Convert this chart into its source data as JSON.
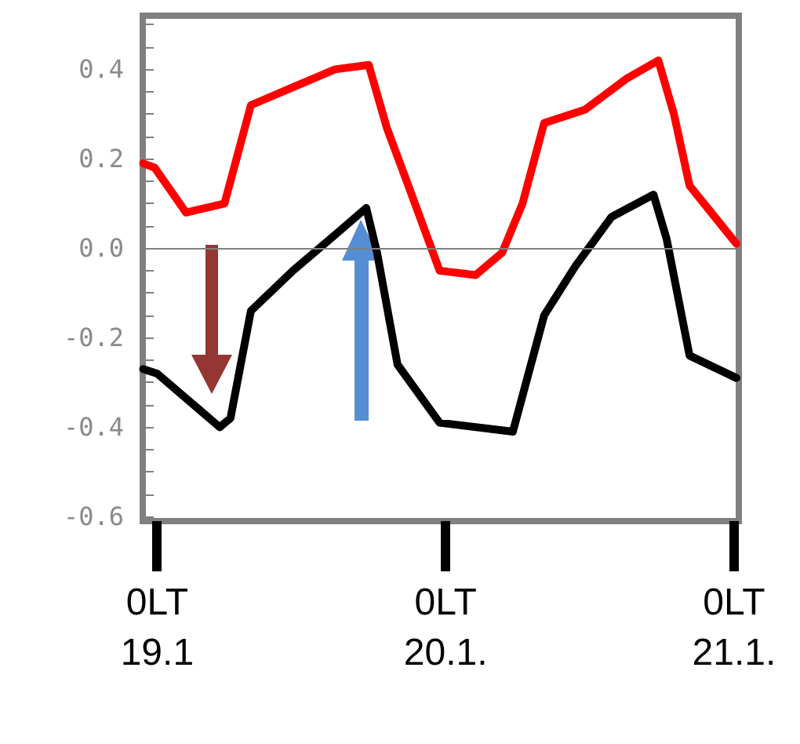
{
  "chart_data": {
    "type": "line",
    "xlim": [
      "--01-18T22:48",
      "--01-21T00:24"
    ],
    "xticks": [
      {
        "value": "--01-19T00:00",
        "label": "0LT\n19.1"
      },
      {
        "value": "--01-20T00:00",
        "label": "0LT\n20.1."
      },
      {
        "value": "--01-21T00:00",
        "label": "0LT\n21.1."
      }
    ],
    "ylim": [
      -0.61,
      0.52
    ],
    "yticks": [
      {
        "value": -0.6,
        "label": "-0.6"
      },
      {
        "value": -0.55,
        "label": null
      },
      {
        "value": -0.5,
        "label": null
      },
      {
        "value": -0.45,
        "label": null
      },
      {
        "value": -0.4,
        "label": "-0.4"
      },
      {
        "value": -0.35,
        "label": null
      },
      {
        "value": -0.3,
        "label": null
      },
      {
        "value": -0.25,
        "label": null
      },
      {
        "value": -0.2,
        "label": "-0.2"
      },
      {
        "value": -0.15,
        "label": null
      },
      {
        "value": -0.1,
        "label": null
      },
      {
        "value": -0.05,
        "label": null
      },
      {
        "value": 0,
        "label": "0.0"
      },
      {
        "value": 0.05,
        "label": null
      },
      {
        "value": 0.1,
        "label": null
      },
      {
        "value": 0.15,
        "label": null
      },
      {
        "value": 0.2,
        "label": "0.2"
      },
      {
        "value": 0.25,
        "label": null
      },
      {
        "value": 0.3,
        "label": null
      },
      {
        "value": 0.35,
        "label": null
      },
      {
        "value": 0.4,
        "label": "0.4"
      },
      {
        "value": 0.45,
        "label": null
      },
      {
        "value": 0.5,
        "label": null
      }
    ],
    "grid": false,
    "marker": "none",
    "line_style": "solid",
    "ref_lines": [
      {
        "axis": "y",
        "value": 0,
        "color": "#808080"
      }
    ],
    "series": [
      {
        "color": "#ff0000",
        "x": [
          "--01-18T22:50",
          "--01-18T23:48",
          "--01-19T02:24",
          "--01-19T05:36",
          "--01-19T07:48",
          "--01-19T11:18",
          "--01-19T14:48",
          "--01-19T17:36",
          "--01-19T19:06",
          "--01-19T20:54",
          "--01-19T23:30",
          "--01-20T02:30",
          "--01-20T04:42",
          "--01-20T06:24",
          "--01-20T08:12",
          "--01-20T11:36",
          "--01-20T15:06",
          "--01-20T17:42",
          "--01-20T19:00",
          "--01-20T20:18",
          "--01-20T22:06",
          "--01-21T00:12"
        ],
        "values": [
          0.19,
          0.18,
          0.08,
          0.1,
          0.32,
          0.36,
          0.4,
          0.41,
          0.27,
          0.14,
          -0.05,
          -0.06,
          -0.01,
          0.1,
          0.28,
          0.31,
          0.38,
          0.42,
          0.3,
          0.14,
          0.08,
          0.01
        ]
      },
      {
        "color": "#000000",
        "x": [
          "--01-18T22:50",
          "--01-19T00:00",
          "--01-19T05:12",
          "--01-19T06:06",
          "--01-19T07:48",
          "--01-19T11:18",
          "--01-19T14:48",
          "--01-19T17:24",
          "--01-19T18:18",
          "--01-19T20:00",
          "--01-19T23:30",
          "--01-20T05:36",
          "--01-20T08:12",
          "--01-20T10:48",
          "--01-20T13:48",
          "--01-20T17:18",
          "--01-20T18:24",
          "--01-20T20:18",
          "--01-21T00:12"
        ],
        "values": [
          -0.27,
          -0.28,
          -0.4,
          -0.38,
          -0.14,
          -0.05,
          0.03,
          0.09,
          -0.01,
          -0.26,
          -0.39,
          -0.41,
          -0.15,
          -0.04,
          0.07,
          0.12,
          0.02,
          -0.24,
          -0.29
        ]
      }
    ]
  }
}
